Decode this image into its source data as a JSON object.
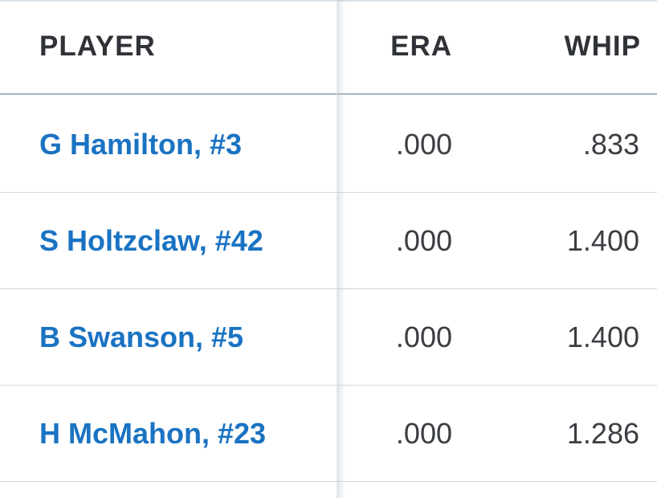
{
  "table": {
    "headers": {
      "player": "PLAYER",
      "era": "ERA",
      "whip": "WHIP"
    },
    "rows": [
      {
        "player": "G Hamilton, #3",
        "era": ".000",
        "whip": ".833"
      },
      {
        "player": "S Holtzclaw, #42",
        "era": ".000",
        "whip": "1.400"
      },
      {
        "player": "B Swanson, #5",
        "era": ".000",
        "whip": "1.400"
      },
      {
        "player": "H McMahon, #23",
        "era": ".000",
        "whip": "1.286"
      }
    ]
  },
  "colors": {
    "link": "#1a73c2",
    "text": "#3a3d42",
    "header_text": "#2f3237",
    "divider": "#cfd8e0"
  }
}
